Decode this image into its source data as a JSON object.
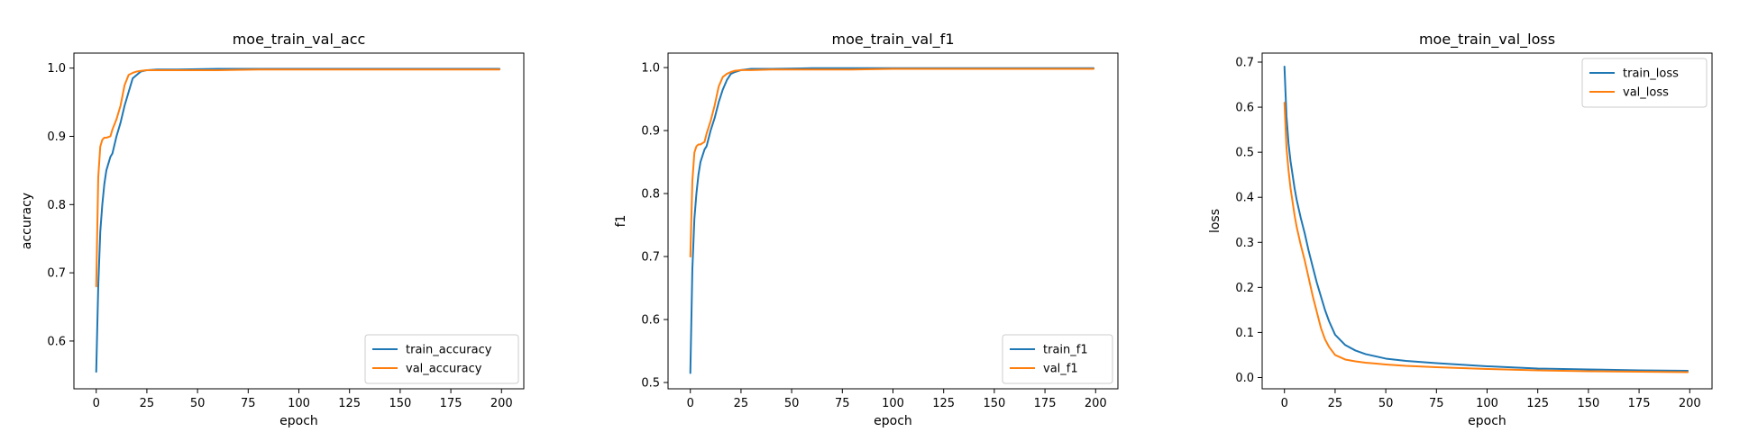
{
  "chart_data": [
    {
      "type": "line",
      "title": "moe_train_val_acc",
      "xlabel": "epoch",
      "ylabel": "accuracy",
      "xlim": [
        -11,
        211
      ],
      "ylim": [
        0.53,
        1.022
      ],
      "xticks": [
        0,
        25,
        50,
        75,
        100,
        125,
        150,
        175,
        200
      ],
      "yticks": [
        0.6,
        0.7,
        0.8,
        0.9,
        1.0
      ],
      "ytick_labels": [
        "0.6",
        "0.7",
        "0.8",
        "0.9",
        "1.0"
      ],
      "legend_position": "lower right",
      "grid": false,
      "series": [
        {
          "name": "train_accuracy",
          "color": "#1f77b4",
          "x": [
            0,
            1,
            2,
            3,
            4,
            5,
            6,
            7,
            8,
            10,
            12,
            14,
            16,
            18,
            20,
            22,
            25,
            30,
            40,
            60,
            80,
            100,
            120,
            140,
            160,
            180,
            199
          ],
          "values": [
            0.555,
            0.68,
            0.76,
            0.8,
            0.83,
            0.85,
            0.86,
            0.87,
            0.875,
            0.9,
            0.92,
            0.945,
            0.965,
            0.985,
            0.99,
            0.995,
            0.997,
            0.998,
            0.998,
            0.999,
            0.999,
            0.999,
            0.999,
            0.999,
            0.999,
            0.999,
            0.999
          ]
        },
        {
          "name": "val_accuracy",
          "color": "#ff7f0e",
          "x": [
            0,
            1,
            2,
            3,
            4,
            5,
            6,
            7,
            8,
            10,
            12,
            14,
            16,
            18,
            20,
            22,
            25,
            30,
            40,
            60,
            80,
            100,
            120,
            140,
            160,
            180,
            199
          ],
          "values": [
            0.68,
            0.84,
            0.885,
            0.895,
            0.898,
            0.898,
            0.899,
            0.9,
            0.91,
            0.925,
            0.945,
            0.975,
            0.99,
            0.993,
            0.995,
            0.996,
            0.997,
            0.997,
            0.997,
            0.997,
            0.998,
            0.998,
            0.998,
            0.998,
            0.998,
            0.998,
            0.998
          ]
        }
      ]
    },
    {
      "type": "line",
      "title": "moe_train_val_f1",
      "xlabel": "epoch",
      "ylabel": "f1",
      "xlim": [
        -11,
        211
      ],
      "ylim": [
        0.49,
        1.023
      ],
      "xticks": [
        0,
        25,
        50,
        75,
        100,
        125,
        150,
        175,
        200
      ],
      "yticks": [
        0.5,
        0.6,
        0.7,
        0.8,
        0.9,
        1.0
      ],
      "ytick_labels": [
        "0.5",
        "0.6",
        "0.7",
        "0.8",
        "0.9",
        "1.0"
      ],
      "legend_position": "lower right",
      "grid": false,
      "series": [
        {
          "name": "train_f1",
          "color": "#1f77b4",
          "x": [
            0,
            1,
            2,
            3,
            4,
            5,
            6,
            7,
            8,
            10,
            12,
            14,
            16,
            18,
            20,
            22,
            25,
            30,
            40,
            60,
            80,
            100,
            120,
            140,
            160,
            180,
            199
          ],
          "values": [
            0.515,
            0.68,
            0.76,
            0.8,
            0.83,
            0.85,
            0.86,
            0.87,
            0.875,
            0.9,
            0.92,
            0.945,
            0.965,
            0.98,
            0.99,
            0.993,
            0.996,
            0.998,
            0.998,
            0.999,
            0.999,
            0.999,
            0.999,
            0.999,
            0.999,
            0.999,
            0.999
          ]
        },
        {
          "name": "val_f1",
          "color": "#ff7f0e",
          "x": [
            0,
            1,
            2,
            3,
            4,
            5,
            6,
            7,
            8,
            10,
            12,
            14,
            16,
            18,
            20,
            22,
            25,
            30,
            40,
            60,
            80,
            100,
            120,
            140,
            160,
            180,
            199
          ],
          "values": [
            0.7,
            0.82,
            0.865,
            0.875,
            0.878,
            0.878,
            0.88,
            0.882,
            0.895,
            0.915,
            0.94,
            0.97,
            0.985,
            0.99,
            0.993,
            0.995,
            0.996,
            0.996,
            0.997,
            0.997,
            0.997,
            0.998,
            0.998,
            0.998,
            0.998,
            0.998,
            0.998
          ]
        }
      ]
    },
    {
      "type": "line",
      "title": "moe_train_val_loss",
      "xlabel": "epoch",
      "ylabel": "loss",
      "xlim": [
        -11,
        211
      ],
      "ylim": [
        -0.025,
        0.72
      ],
      "xticks": [
        0,
        25,
        50,
        75,
        100,
        125,
        150,
        175,
        200
      ],
      "yticks": [
        0.0,
        0.1,
        0.2,
        0.3,
        0.4,
        0.5,
        0.6,
        0.7
      ],
      "ytick_labels": [
        "0.0",
        "0.1",
        "0.2",
        "0.3",
        "0.4",
        "0.5",
        "0.6",
        "0.7"
      ],
      "legend_position": "upper right",
      "grid": false,
      "series": [
        {
          "name": "train_loss",
          "color": "#1f77b4",
          "x": [
            0,
            1,
            2,
            3,
            4,
            5,
            6,
            8,
            10,
            12,
            14,
            16,
            18,
            20,
            22,
            25,
            30,
            35,
            40,
            50,
            60,
            75,
            100,
            125,
            150,
            175,
            199
          ],
          "values": [
            0.69,
            0.58,
            0.52,
            0.48,
            0.45,
            0.42,
            0.395,
            0.355,
            0.32,
            0.28,
            0.245,
            0.21,
            0.18,
            0.15,
            0.125,
            0.095,
            0.072,
            0.06,
            0.052,
            0.042,
            0.037,
            0.032,
            0.025,
            0.02,
            0.018,
            0.016,
            0.015
          ]
        },
        {
          "name": "val_loss",
          "color": "#ff7f0e",
          "x": [
            0,
            1,
            2,
            3,
            4,
            5,
            6,
            8,
            10,
            12,
            14,
            16,
            18,
            20,
            22,
            25,
            30,
            35,
            40,
            50,
            60,
            75,
            100,
            125,
            150,
            175,
            199
          ],
          "values": [
            0.61,
            0.51,
            0.46,
            0.42,
            0.39,
            0.36,
            0.335,
            0.295,
            0.26,
            0.22,
            0.18,
            0.145,
            0.11,
            0.085,
            0.068,
            0.05,
            0.04,
            0.036,
            0.033,
            0.029,
            0.026,
            0.023,
            0.019,
            0.016,
            0.014,
            0.013,
            0.012
          ]
        }
      ]
    }
  ]
}
